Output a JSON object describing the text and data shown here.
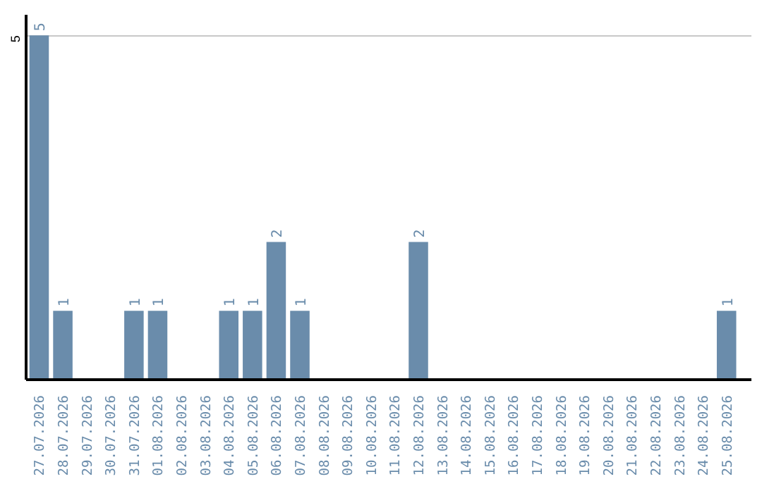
{
  "chart_data": {
    "type": "bar",
    "categories": [
      "27.07.2026",
      "28.07.2026",
      "29.07.2026",
      "30.07.2026",
      "31.07.2026",
      "01.08.2026",
      "02.08.2026",
      "03.08.2026",
      "04.08.2026",
      "05.08.2026",
      "06.08.2026",
      "07.08.2026",
      "08.08.2026",
      "09.08.2026",
      "10.08.2026",
      "11.08.2026",
      "12.08.2026",
      "13.08.2026",
      "14.08.2026",
      "15.08.2026",
      "16.08.2026",
      "17.08.2026",
      "18.08.2026",
      "19.08.2026",
      "20.08.2026",
      "21.08.2026",
      "22.08.2026",
      "23.08.2026",
      "24.08.2026",
      "25.08.2026"
    ],
    "values": [
      5,
      1,
      0,
      0,
      1,
      1,
      0,
      0,
      1,
      1,
      2,
      1,
      0,
      0,
      0,
      0,
      2,
      0,
      0,
      0,
      0,
      0,
      0,
      0,
      0,
      0,
      0,
      0,
      0,
      1
    ],
    "value_labels": [
      "5",
      "1",
      null,
      null,
      "1",
      "1",
      null,
      null,
      "1",
      "1",
      "2",
      "1",
      null,
      null,
      null,
      null,
      "2",
      null,
      null,
      null,
      null,
      null,
      null,
      null,
      null,
      null,
      null,
      null,
      null,
      "1"
    ],
    "color": "#6a8cab",
    "ylim": [
      0,
      5.3
    ],
    "yticks": [
      5
    ],
    "grid": "y"
  }
}
